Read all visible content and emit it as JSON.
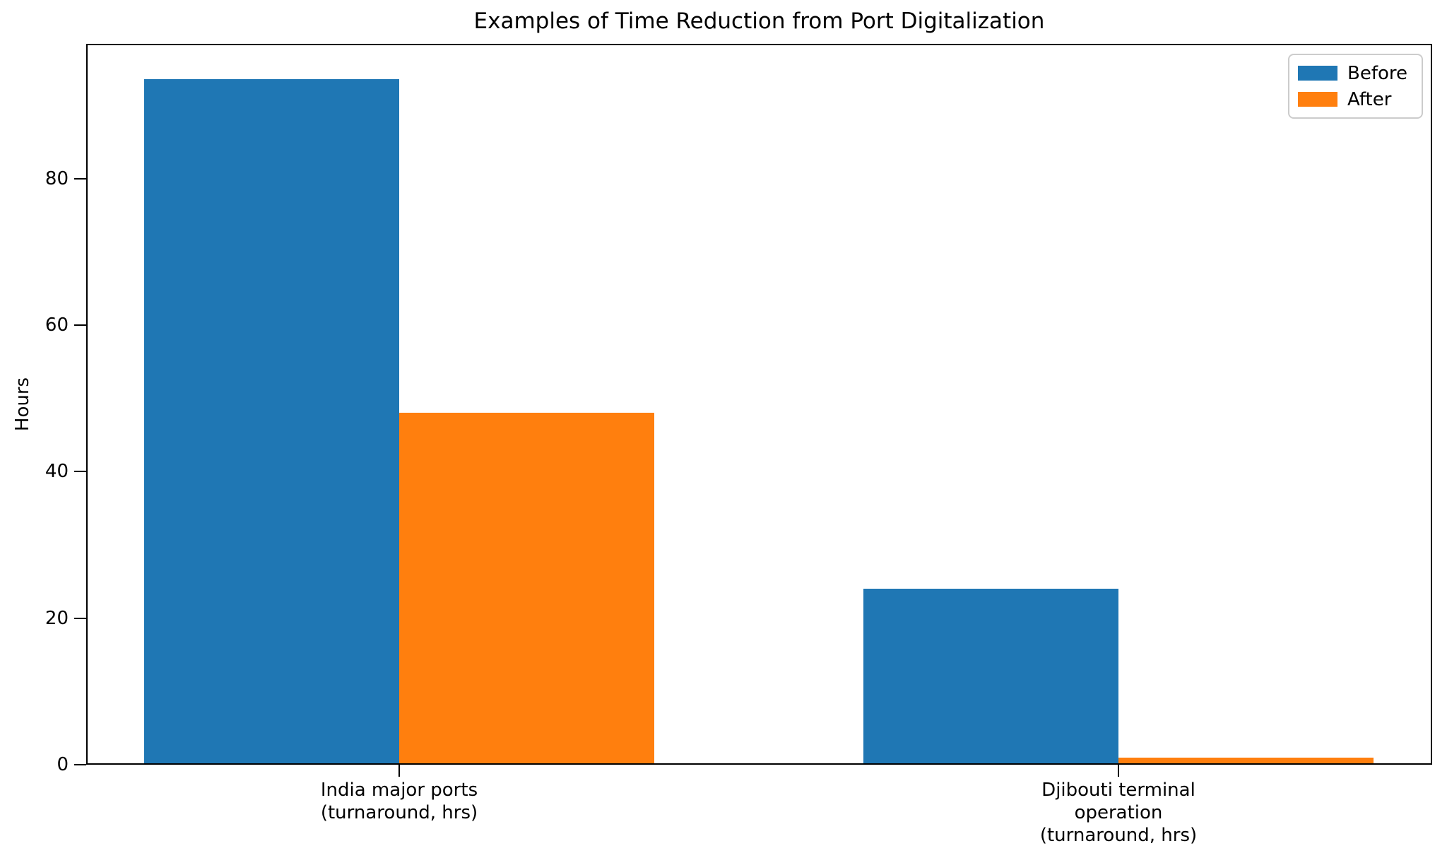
{
  "chart_data": {
    "type": "bar",
    "title": "Examples of Time Reduction from Port Digitalization",
    "xlabel": "",
    "ylabel": "Hours",
    "categories": [
      "India major ports\n(turnaround, hrs)",
      "Djibouti terminal\noperation\n(turnaround, hrs)"
    ],
    "series": [
      {
        "name": "Before",
        "color": "#1f77b4",
        "values": [
          93.59,
          24
        ]
      },
      {
        "name": "After",
        "color": "#ff7f0e",
        "values": [
          48.06,
          1
        ]
      }
    ],
    "yticks": [
      0,
      20,
      40,
      60,
      80
    ],
    "ylim": [
      0,
      98.4
    ],
    "grid": false,
    "legend_position": "upper right",
    "bar_width_fraction": 0.35
  }
}
